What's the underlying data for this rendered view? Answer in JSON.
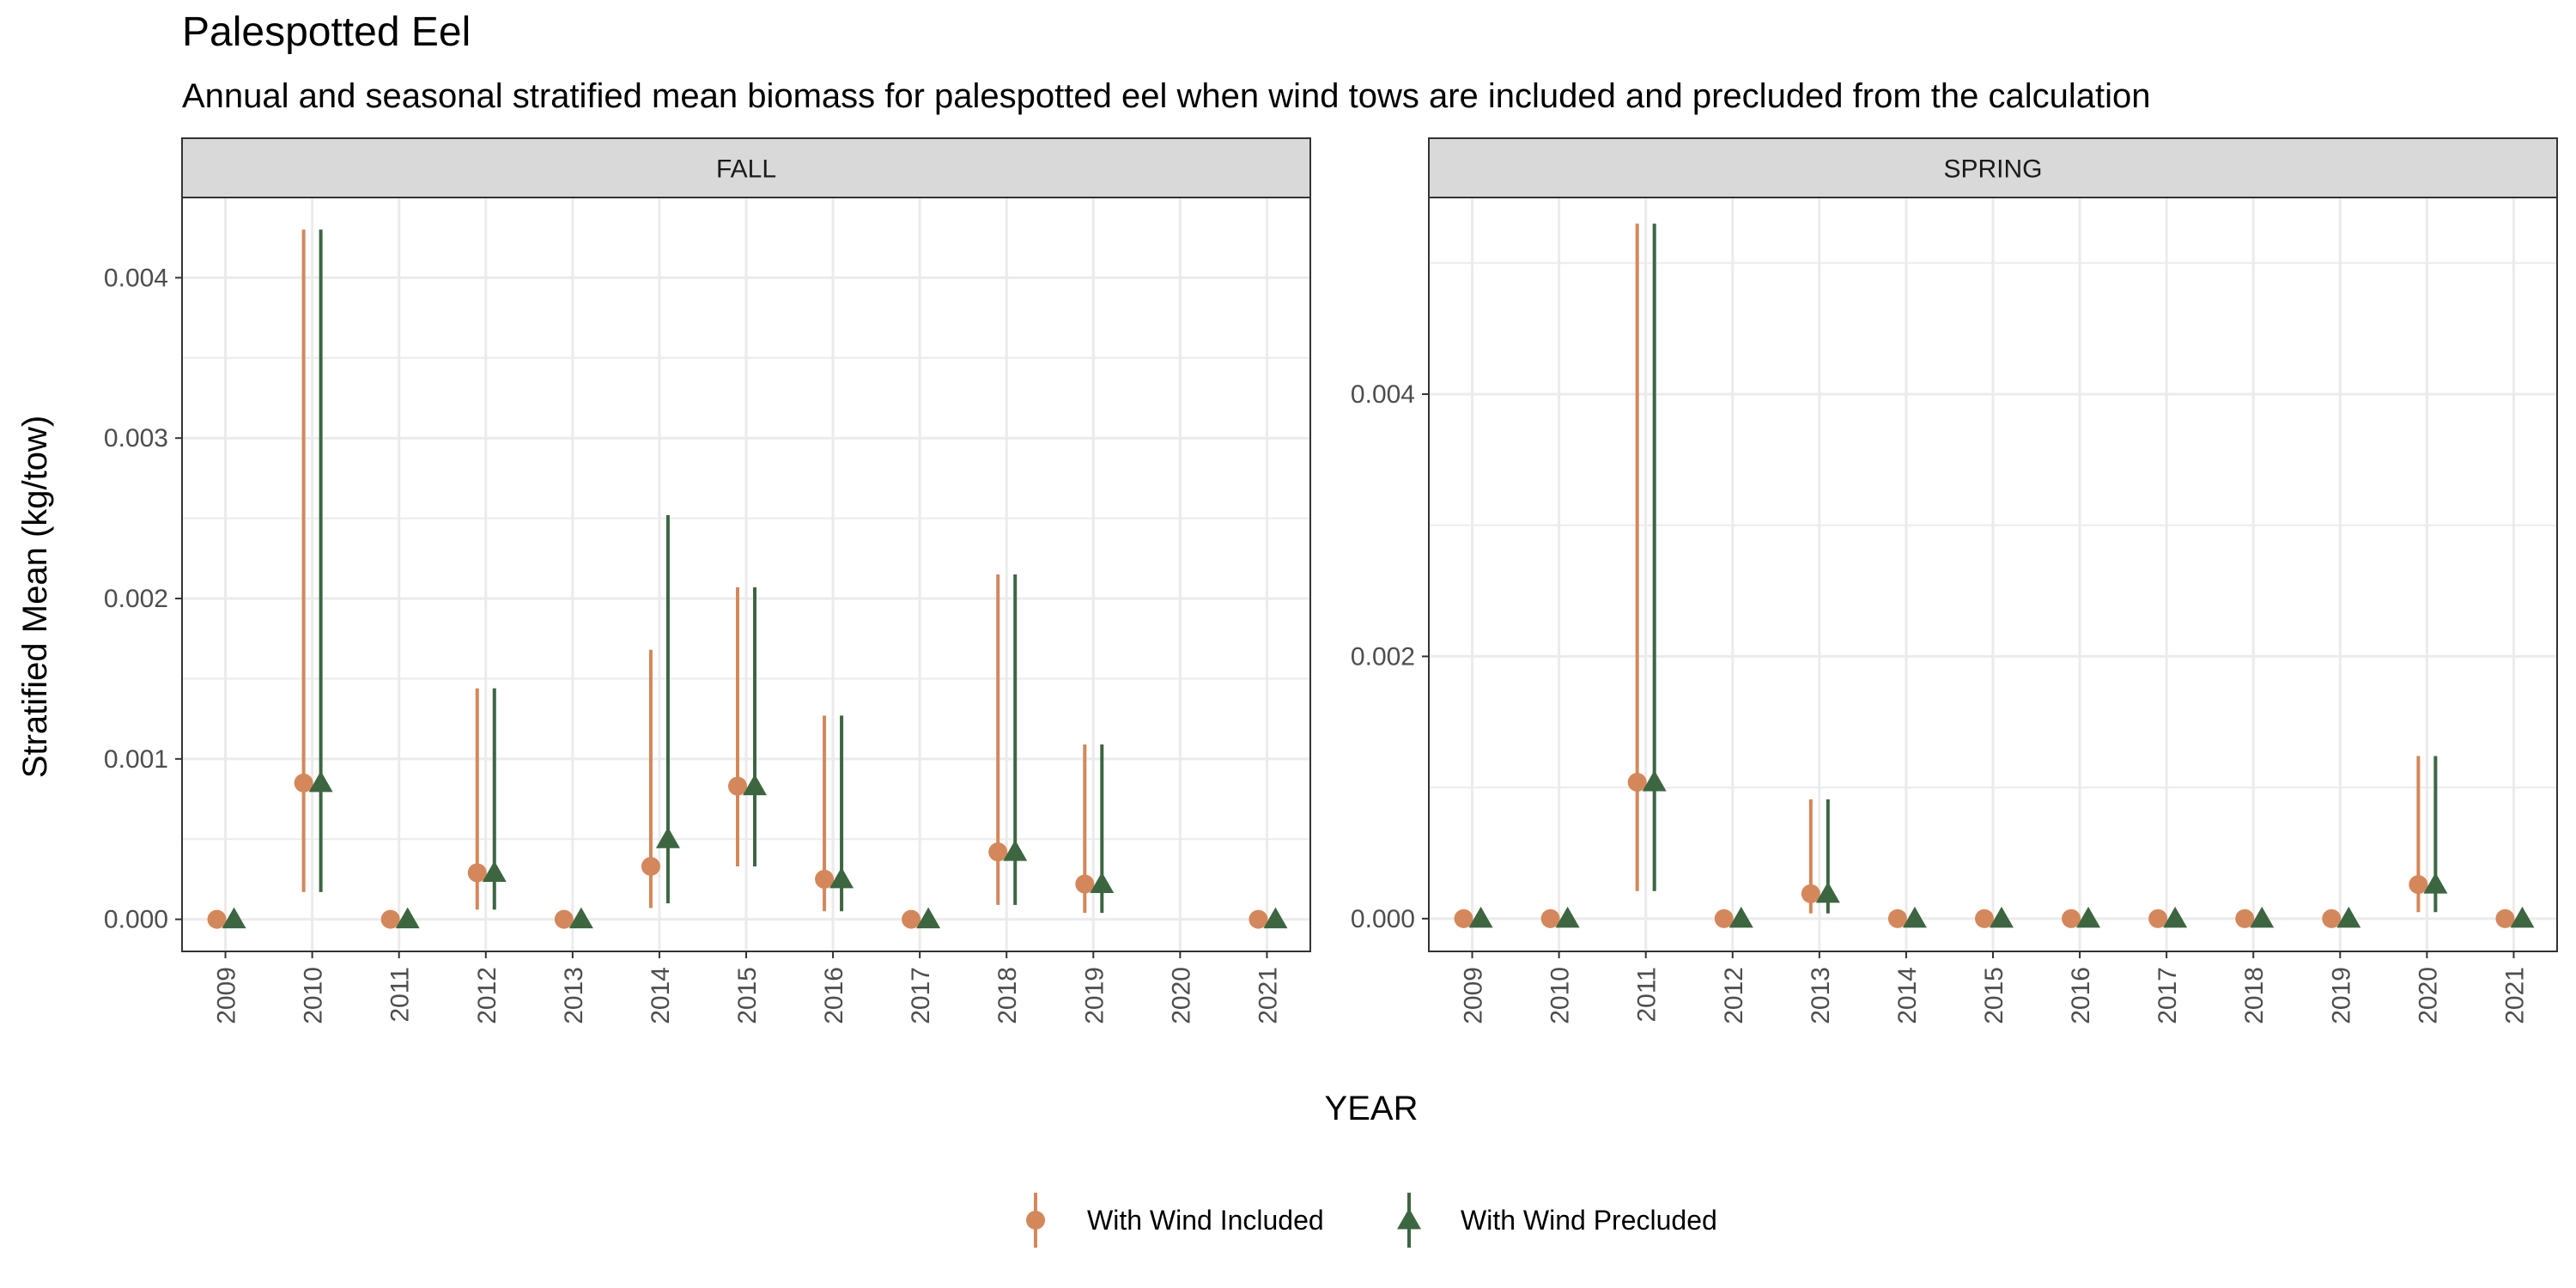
{
  "title": "Palespotted Eel",
  "subtitle": "Annual and seasonal stratified mean biomass for palespotted eel when wind tows are included and precluded from the calculation",
  "colors": {
    "included": "#D4875A",
    "precluded": "#3C6640",
    "strip_bg": "#D9D9D9",
    "grid": "#EBEBEB",
    "panel_border": "#333333"
  },
  "chart_data": {
    "type": "scatter",
    "xlabel": "YEAR",
    "ylabel": "Stratified Mean (kg/tow)",
    "legend_position": "bottom",
    "grid": true,
    "series_names": [
      "With Wind Included",
      "With Wind Precluded"
    ],
    "panels": [
      {
        "facet": "FALL",
        "x": [
          "2009",
          "2010",
          "2011",
          "2012",
          "2013",
          "2014",
          "2015",
          "2016",
          "2017",
          "2018",
          "2019",
          "2020",
          "2021"
        ],
        "ylim": [
          -0.0002,
          0.0045
        ],
        "yticks": [
          0.0,
          0.001,
          0.002,
          0.003,
          0.004
        ],
        "ytick_labels": [
          "0.000",
          "0.001",
          "0.002",
          "0.003",
          "0.004"
        ],
        "series": [
          {
            "name": "With Wind Included",
            "values": [
              0.0,
              0.00085,
              0.0,
              0.00029,
              0.0,
              0.00033,
              0.00083,
              0.00025,
              0.0,
              0.00042,
              0.00022,
              null,
              0.0
            ],
            "lower": [
              null,
              0.00017,
              null,
              6e-05,
              null,
              7e-05,
              0.00033,
              5e-05,
              null,
              9e-05,
              4e-05,
              null,
              null
            ],
            "upper": [
              null,
              0.0043,
              null,
              0.00144,
              null,
              0.00168,
              0.00207,
              0.00127,
              null,
              0.00215,
              0.00109,
              null,
              null
            ]
          },
          {
            "name": "With Wind Precluded",
            "values": [
              0.0,
              0.00085,
              0.0,
              0.00029,
              0.0,
              0.0005,
              0.00083,
              0.00025,
              0.0,
              0.00042,
              0.00022,
              null,
              0.0
            ],
            "lower": [
              null,
              0.00017,
              null,
              6e-05,
              null,
              0.0001,
              0.00033,
              5e-05,
              null,
              9e-05,
              4e-05,
              null,
              null
            ],
            "upper": [
              null,
              0.0043,
              null,
              0.00144,
              null,
              0.00252,
              0.00207,
              0.00127,
              null,
              0.00215,
              0.00109,
              null,
              null
            ]
          }
        ]
      },
      {
        "facet": "SPRING",
        "x": [
          "2009",
          "2010",
          "2011",
          "2012",
          "2013",
          "2014",
          "2015",
          "2016",
          "2017",
          "2018",
          "2019",
          "2020",
          "2021"
        ],
        "ylim": [
          -0.00025,
          0.0055
        ],
        "yticks": [
          0.0,
          0.002,
          0.004
        ],
        "ytick_labels": [
          "0.000",
          "0.002",
          "0.004"
        ],
        "series": [
          {
            "name": "With Wind Included",
            "values": [
              0.0,
              0.0,
              0.00104,
              0.0,
              0.00019,
              0.0,
              0.0,
              0.0,
              0.0,
              0.0,
              0.0,
              0.00026,
              0.0
            ],
            "lower": [
              null,
              null,
              0.00021,
              null,
              4e-05,
              null,
              null,
              null,
              null,
              null,
              null,
              5e-05,
              null
            ],
            "upper": [
              null,
              null,
              0.0053,
              null,
              0.00091,
              null,
              null,
              null,
              null,
              null,
              null,
              0.00124,
              null
            ]
          },
          {
            "name": "With Wind Precluded",
            "values": [
              0.0,
              0.0,
              0.00104,
              0.0,
              0.00019,
              0.0,
              0.0,
              0.0,
              0.0,
              0.0,
              0.0,
              0.00026,
              0.0
            ],
            "lower": [
              null,
              null,
              0.00021,
              null,
              4e-05,
              null,
              null,
              null,
              null,
              null,
              null,
              5e-05,
              null
            ],
            "upper": [
              null,
              null,
              0.0053,
              null,
              0.00091,
              null,
              null,
              null,
              null,
              null,
              null,
              0.00124,
              null
            ]
          }
        ]
      }
    ]
  }
}
